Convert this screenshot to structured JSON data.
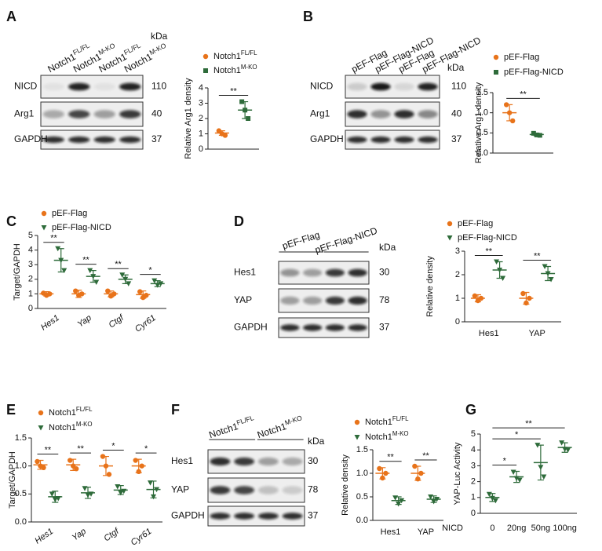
{
  "chart_data": [
    {
      "type": "dot",
      "panel": "A",
      "ylabel": "Relative Arg1 density",
      "ylim": [
        0,
        4
      ],
      "yticks": [
        0,
        1,
        2,
        3,
        4
      ],
      "significance": "**",
      "series": [
        {
          "name": {
            "text": "Notch1",
            "sup": "FL/FL"
          },
          "color": "#e8731a",
          "marker": "circle",
          "values": [
            1.05
          ],
          "sd": [
            0.15
          ],
          "points": [
            [
              1.2,
              1.0,
              0.9
            ]
          ]
        },
        {
          "name": {
            "text": "Notch1",
            "sup": "M-KO"
          },
          "color": "#2e6b3a",
          "marker": "square",
          "values": [
            2.55
          ],
          "sd": [
            0.55
          ],
          "points": [
            [
              3.1,
              2.55,
              2.0
            ]
          ]
        }
      ]
    },
    {
      "type": "dot",
      "panel": "B",
      "ylabel": "Relative Arg1 density",
      "ylim": [
        0,
        1.5
      ],
      "yticks": [
        {
          "value": 0,
          "label": "0.0"
        },
        {
          "value": 0.5,
          "label": "0.5"
        },
        {
          "value": 1,
          "label": "1.0"
        },
        {
          "value": 1.5,
          "label": "1.5"
        }
      ],
      "significance": "**",
      "series": [
        {
          "name": "pEF-Flag",
          "color": "#e8731a",
          "marker": "circle",
          "values": [
            1.0
          ],
          "sd": [
            0.2
          ],
          "points": [
            [
              1.2,
              1.0,
              0.8
            ]
          ]
        },
        {
          "name": "pEF-Flag-NICD",
          "color": "#2e6b3a",
          "marker": "square",
          "values": [
            0.46
          ],
          "sd": [
            0.03
          ],
          "points": [
            [
              0.49,
              0.45,
              0.44
            ]
          ]
        }
      ]
    },
    {
      "type": "dot",
      "panel": "C",
      "ylabel": "Target/GAPDH",
      "categories": [
        "Hes1",
        "Yap",
        "Ctgf",
        "Cyr61"
      ],
      "ylim": [
        0,
        5
      ],
      "yticks": [
        0,
        1,
        2,
        3,
        4,
        5
      ],
      "significance": [
        "**",
        "**",
        "**",
        "*"
      ],
      "series": [
        {
          "name": "pEF-Flag",
          "color": "#e8731a",
          "marker": "circle",
          "values": [
            1.0,
            1.0,
            1.0,
            0.95
          ],
          "sd": [
            0.15,
            0.25,
            0.2,
            0.25
          ],
          "points": [
            [
              1.05,
              0.9,
              1.0
            ],
            [
              1.2,
              0.9,
              1.0
            ],
            [
              1.2,
              0.85,
              1.0
            ],
            [
              1.15,
              0.75,
              0.9
            ]
          ]
        },
        {
          "name": "pEF-Flag-NICD",
          "color": "#2e6b3a",
          "marker": "triangle",
          "values": [
            3.3,
            2.2,
            2.0,
            1.7
          ],
          "sd": [
            0.8,
            0.4,
            0.3,
            0.2
          ],
          "points": [
            [
              4.1,
              3.3,
              2.6
            ],
            [
              2.6,
              2.2,
              1.8
            ],
            [
              2.3,
              2.0,
              1.7
            ],
            [
              1.9,
              1.6,
              1.7
            ]
          ]
        }
      ]
    },
    {
      "type": "dot",
      "panel": "D",
      "ylabel": "Relative density",
      "categories": [
        "Hes1",
        "YAP"
      ],
      "ylim": [
        0,
        3
      ],
      "yticks": [
        0,
        1,
        2,
        3
      ],
      "significance": [
        "**",
        "**"
      ],
      "series": [
        {
          "name": "pEF-Flag",
          "color": "#e8731a",
          "marker": "circle",
          "values": [
            1.0,
            1.0
          ],
          "sd": [
            0.15,
            0.25
          ],
          "points": [
            [
              1.1,
              0.9,
              1.0
            ],
            [
              1.2,
              0.8,
              1.0
            ]
          ]
        },
        {
          "name": "pEF-Flag-NICD",
          "color": "#2e6b3a",
          "marker": "triangle",
          "values": [
            2.2,
            2.05
          ],
          "sd": [
            0.35,
            0.3
          ],
          "points": [
            [
              2.55,
              2.2,
              1.85
            ],
            [
              2.35,
              2.05,
              1.8
            ]
          ]
        }
      ]
    },
    {
      "type": "dot",
      "panel": "E",
      "ylabel": "Target/GAPDH",
      "categories": [
        "Hes1",
        "Yap",
        "Ctgf",
        "Cyr61"
      ],
      "ylim": [
        0,
        1.5
      ],
      "yticks": [
        {
          "value": 0,
          "label": "0.0"
        },
        {
          "value": 0.5,
          "label": "0.5"
        },
        {
          "value": 1,
          "label": "1.0"
        },
        {
          "value": 1.5,
          "label": "1.5"
        }
      ],
      "significance": [
        "**",
        "**",
        "*",
        "*"
      ],
      "series": [
        {
          "name": {
            "text": "Notch1",
            "sup": "FL/FL"
          },
          "color": "#e8731a",
          "marker": "circle",
          "values": [
            1.02,
            1.02,
            1.0,
            1.0
          ],
          "sd": [
            0.08,
            0.1,
            0.17,
            0.12
          ],
          "points": [
            [
              1.08,
              1.0,
              0.97
            ],
            [
              1.1,
              1.0,
              0.95
            ],
            [
              1.17,
              1.0,
              0.85
            ],
            [
              1.1,
              0.9,
              1.0
            ]
          ]
        },
        {
          "name": {
            "text": "Notch1",
            "sup": "M-KO"
          },
          "color": "#2e6b3a",
          "marker": "triangle",
          "values": [
            0.45,
            0.52,
            0.57,
            0.58
          ],
          "sd": [
            0.1,
            0.1,
            0.08,
            0.15
          ],
          "points": [
            [
              0.5,
              0.4,
              0.42
            ],
            [
              0.6,
              0.48,
              0.5
            ],
            [
              0.63,
              0.52,
              0.55
            ],
            [
              0.7,
              0.45,
              0.58
            ]
          ]
        }
      ]
    },
    {
      "type": "dot",
      "panel": "F",
      "ylabel": "Relative density",
      "categories": [
        "Hes1",
        "YAP"
      ],
      "ylim": [
        0,
        1.5
      ],
      "yticks": [
        {
          "value": 0,
          "label": "0.0"
        },
        {
          "value": 0.5,
          "label": "0.5"
        },
        {
          "value": 1,
          "label": "1.0"
        },
        {
          "value": 1.5,
          "label": "1.5"
        }
      ],
      "significance": [
        "**",
        "**"
      ],
      "series": [
        {
          "name": {
            "text": "Notch1",
            "sup": "FL/FL"
          },
          "color": "#e8731a",
          "marker": "circle",
          "values": [
            1.0,
            1.0
          ],
          "sd": [
            0.12,
            0.15
          ],
          "points": [
            [
              1.1,
              0.9,
              1.0
            ],
            [
              1.15,
              0.88,
              1.0
            ]
          ]
        },
        {
          "name": {
            "text": "Notch1",
            "sup": "M-KO"
          },
          "color": "#2e6b3a",
          "marker": "triangle",
          "values": [
            0.42,
            0.45
          ],
          "sd": [
            0.08,
            0.07
          ],
          "points": [
            [
              0.48,
              0.35,
              0.42
            ],
            [
              0.5,
              0.4,
              0.45
            ]
          ]
        }
      ]
    },
    {
      "type": "dot",
      "panel": "G",
      "ylabel": "YAP-Luc Activity",
      "xlabel": "NICD",
      "categories": [
        "0",
        "20ng",
        "50ng",
        "100ng"
      ],
      "ylim": [
        0,
        5
      ],
      "yticks": [
        0,
        1,
        2,
        3,
        4,
        5
      ],
      "significance": [
        "*",
        "*",
        "**"
      ],
      "series": [
        {
          "color": "#2e6b3a",
          "marker": "triangle",
          "values": [
            1.0,
            2.3,
            3.2,
            4.15
          ],
          "sd": [
            0.25,
            0.35,
            1.1,
            0.3
          ],
          "points": [
            [
              1.2,
              0.95,
              0.8
            ],
            [
              2.6,
              2.2,
              2.1
            ],
            [
              4.3,
              2.9,
              2.3
            ],
            [
              4.45,
              4.05,
              4.0
            ]
          ]
        }
      ]
    }
  ],
  "blots": [
    {
      "lanes": [
        {
          "text": "Notch1",
          "sup": "FL/FL"
        },
        {
          "text": "Notch1",
          "sup": "M-KO"
        },
        {
          "text": "Notch1",
          "sup": "FL/FL"
        },
        {
          "text": "Notch1",
          "sup": "M-KO"
        }
      ],
      "unit": "kDa",
      "rows": [
        {
          "name": "NICD",
          "kda": 110
        },
        {
          "name": "Arg1",
          "kda": 40
        },
        {
          "name": "GAPDH",
          "kda": 37
        }
      ]
    },
    {
      "lanes": [
        "pEF-Flag",
        "pEF-Flag-NICD",
        "pEF-Flag",
        "pEF-Flag-NICD"
      ],
      "unit": "kDa",
      "rows": [
        {
          "name": "NICD",
          "kda": 110
        },
        {
          "name": "Arg1",
          "kda": 40
        },
        {
          "name": "GAPDH",
          "kda": 37
        }
      ]
    },
    {
      "groups": [
        "pEF-Flag",
        "pEF-Flag-NICD"
      ],
      "unit": "kDa",
      "rows": [
        {
          "name": "Hes1",
          "kda": 30
        },
        {
          "name": "YAP",
          "kda": 78
        },
        {
          "name": "GAPDH",
          "kda": 37
        }
      ]
    },
    {
      "groups": [
        {
          "text": "Notch1",
          "sup": "FL/FL"
        },
        {
          "text": "Notch1",
          "sup": "M-KO"
        }
      ],
      "unit": "kDa",
      "rows": [
        {
          "name": "Hes1",
          "kda": 30
        },
        {
          "name": "YAP",
          "kda": 78
        },
        {
          "name": "GAPDH",
          "kda": 37
        }
      ]
    }
  ]
}
